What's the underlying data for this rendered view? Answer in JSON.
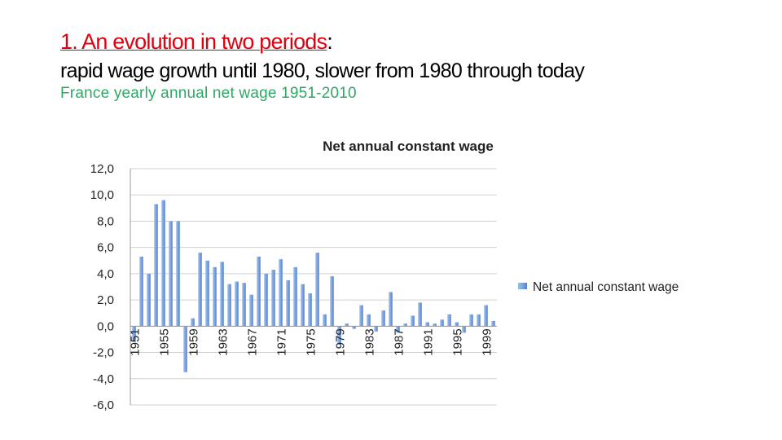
{
  "header": {
    "title_main": "1. An evolution in two periods",
    "title_colon": ":",
    "subtitle": "rapid wage growth until 1980, slower from 1980 through today",
    "caption": "France yearly annual net wage 1951-2010"
  },
  "colors": {
    "title_red": "#e2000f",
    "caption_green": "#2ea864",
    "bar": "#7ea6e0",
    "grid": "#d0d0d0"
  },
  "chart_data": {
    "type": "bar",
    "title": "Net annual constant wage",
    "legend": {
      "label": "Net annual constant wage",
      "position": "right"
    },
    "ylim": [
      -6,
      12
    ],
    "yticks": [
      "12,0",
      "10,0",
      "8,0",
      "6,0",
      "4,0",
      "2,0",
      "0,0",
      "-2,0",
      "-4,0",
      "-6,0"
    ],
    "xticks": [
      "1951",
      "1955",
      "1959",
      "1963",
      "1967",
      "1971",
      "1975",
      "1979",
      "1983",
      "1987",
      "1991",
      "1995",
      "1999"
    ],
    "categories": [
      "1951",
      "1952",
      "1953",
      "1954",
      "1955",
      "1956",
      "1957",
      "1958",
      "1959",
      "1960",
      "1961",
      "1962",
      "1963",
      "1964",
      "1965",
      "1966",
      "1967",
      "1968",
      "1969",
      "1970",
      "1971",
      "1972",
      "1973",
      "1974",
      "1975",
      "1976",
      "1977",
      "1978",
      "1979",
      "1980",
      "1981",
      "1982",
      "1983",
      "1984",
      "1985",
      "1986",
      "1987",
      "1988",
      "1989",
      "1990",
      "1991",
      "1992",
      "1993",
      "1994",
      "1995",
      "1996",
      "1997",
      "1998",
      "1999",
      "2000"
    ],
    "values": [
      -1.2,
      5.3,
      4.0,
      9.3,
      9.6,
      8.0,
      8.0,
      -3.5,
      0.6,
      5.6,
      5.0,
      4.5,
      4.9,
      3.2,
      3.4,
      3.3,
      2.4,
      5.3,
      4.0,
      4.3,
      5.1,
      3.5,
      4.5,
      3.2,
      2.5,
      5.6,
      0.9,
      3.8,
      -1.4,
      0.2,
      -0.2,
      1.6,
      0.9,
      -0.4,
      1.2,
      2.6,
      -0.5,
      0.2,
      0.8,
      1.8,
      0.3,
      0.2,
      0.5,
      0.9,
      0.3,
      -0.5,
      0.9,
      0.9,
      1.6,
      0.4
    ]
  }
}
